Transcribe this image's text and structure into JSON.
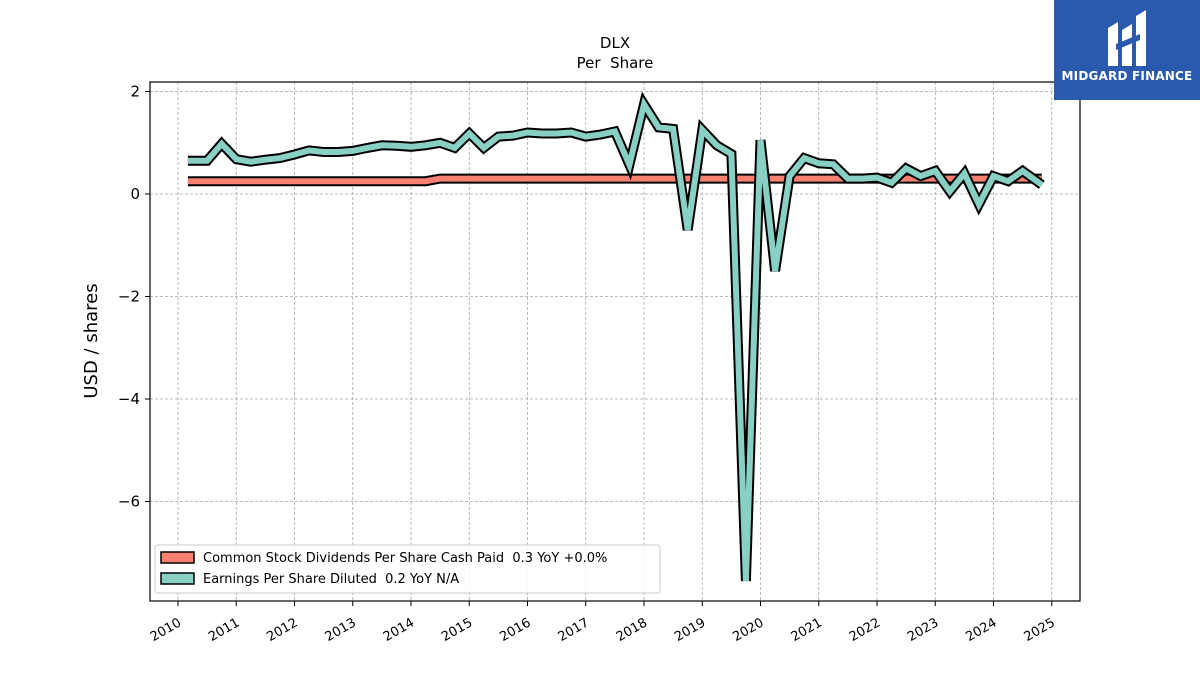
{
  "brand": {
    "name": "MIDGARD FINANCE",
    "color": "#2a5aad"
  },
  "chart_data": {
    "type": "line",
    "title": "DLX",
    "subtitle": "Per  Share",
    "ylabel": "USD / shares",
    "xlabel": "",
    "xlim": [
      2009.5,
      2025.5
    ],
    "ylim": [
      -7.9,
      2.2
    ],
    "xticks": [
      "2010",
      "2011",
      "2012",
      "2013",
      "2014",
      "2015",
      "2016",
      "2017",
      "2018",
      "2019",
      "2020",
      "2021",
      "2022",
      "2023",
      "2024",
      "2025"
    ],
    "yticks": [
      2,
      0,
      -2,
      -4,
      -6
    ],
    "ytick_labels": [
      "2",
      "0",
      "−2",
      "−4",
      "−6"
    ],
    "grid": true,
    "legend_placement": "lower-left",
    "series": [
      {
        "name": "Common Stock Dividends Per Share Cash Paid  0.3 YoY +0.0%",
        "color": "#fa8072",
        "x": [
          2010.17,
          2014.25,
          2014.5,
          2024.83
        ],
        "y": [
          0.25,
          0.25,
          0.3,
          0.3
        ]
      },
      {
        "name": "Earnings Per Share Diluted  0.2 YoY N/A",
        "color": "#88d0c4",
        "x": [
          2010.17,
          2010.5,
          2010.75,
          2011.0,
          2011.25,
          2011.5,
          2011.75,
          2012.0,
          2012.25,
          2012.5,
          2012.75,
          2013.0,
          2013.25,
          2013.5,
          2013.75,
          2014.0,
          2014.25,
          2014.5,
          2014.75,
          2015.0,
          2015.25,
          2015.5,
          2015.75,
          2016.0,
          2016.25,
          2016.5,
          2016.75,
          2017.0,
          2017.25,
          2017.5,
          2017.75,
          2018.0,
          2018.25,
          2018.5,
          2018.75,
          2019.0,
          2019.25,
          2019.5,
          2019.75,
          2020.0,
          2020.25,
          2020.5,
          2020.75,
          2021.0,
          2021.25,
          2021.5,
          2021.75,
          2022.0,
          2022.25,
          2022.5,
          2022.75,
          2023.0,
          2023.25,
          2023.5,
          2023.75,
          2024.0,
          2024.25,
          2024.5,
          2024.83
        ],
        "y": [
          0.65,
          0.65,
          0.98,
          0.68,
          0.63,
          0.67,
          0.7,
          0.77,
          0.85,
          0.82,
          0.82,
          0.84,
          0.9,
          0.95,
          0.94,
          0.92,
          0.95,
          1.0,
          0.9,
          1.18,
          0.9,
          1.12,
          1.14,
          1.2,
          1.18,
          1.18,
          1.2,
          1.12,
          1.16,
          1.22,
          0.57,
          1.75,
          1.3,
          1.27,
          -0.7,
          1.25,
          0.95,
          0.78,
          -7.55,
          1.05,
          -1.5,
          0.35,
          0.7,
          0.6,
          0.58,
          0.3,
          0.3,
          0.32,
          0.22,
          0.5,
          0.35,
          0.45,
          0.05,
          0.4,
          -0.2,
          0.35,
          0.25,
          0.45,
          0.18
        ]
      }
    ]
  }
}
